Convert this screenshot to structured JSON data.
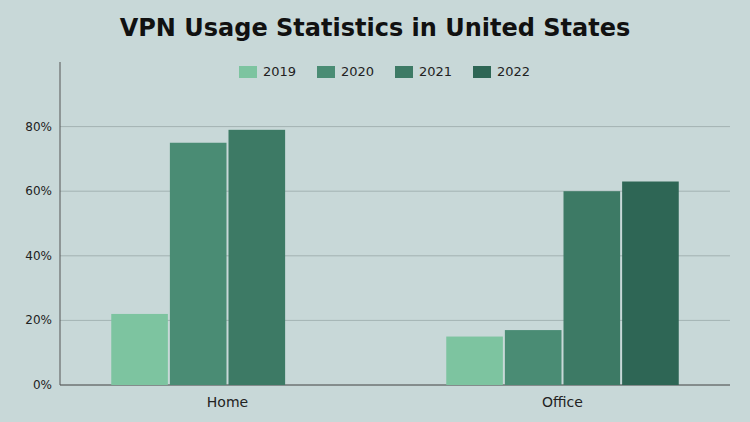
{
  "chart_data": {
    "type": "bar",
    "title": "VPN Usage Statistics in United States",
    "categories": [
      "Home",
      "Office"
    ],
    "series": [
      {
        "name": "2019",
        "color": "#7dc4a0",
        "values": [
          22,
          15
        ]
      },
      {
        "name": "2020",
        "color": "#4a8c74",
        "values": [
          75,
          17
        ]
      },
      {
        "name": "2021",
        "color": "#3d7a65",
        "values": [
          79,
          60
        ]
      },
      {
        "name": "2022",
        "color": "#2e6655",
        "values": [
          0,
          63
        ]
      }
    ],
    "ylim": [
      0,
      100
    ],
    "yticks": [
      {
        "value": 0,
        "label": "0%"
      },
      {
        "value": 20,
        "label": "20%"
      },
      {
        "value": 40,
        "label": "40%"
      },
      {
        "value": 60,
        "label": "60%"
      },
      {
        "value": 80,
        "label": "80%"
      }
    ],
    "grid": true,
    "legend": "top"
  }
}
